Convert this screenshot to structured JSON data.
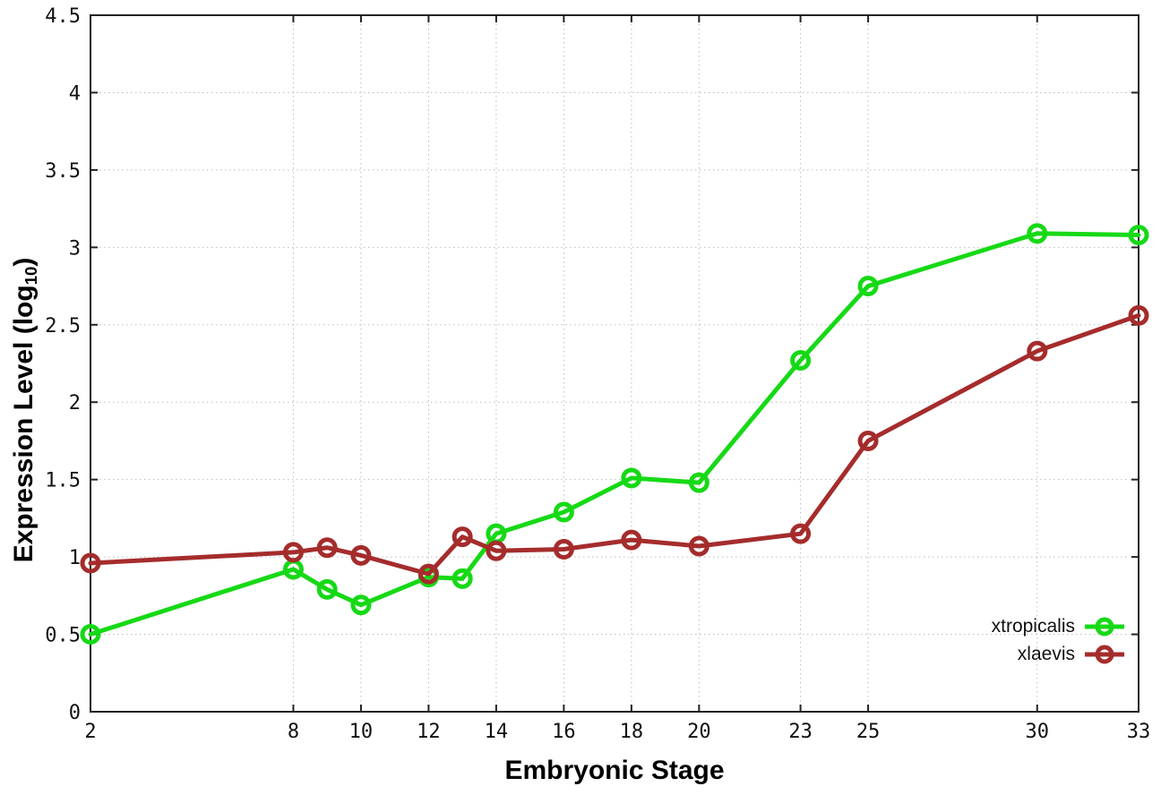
{
  "axes": {
    "x_label": "Embryonic Stage",
    "y_label_prefix": "Expression Level (log",
    "y_label_sub": "10",
    "y_label_suffix": ")"
  },
  "legend": {
    "position": "bottom-right",
    "entries": [
      {
        "label": "xtropicalis",
        "color": "#16d916"
      },
      {
        "label": "xlaevis",
        "color": "#a52c2c"
      }
    ]
  },
  "colors": {
    "grid": "#bdbdbd",
    "axis": "#222222",
    "tick_text": "#111111",
    "background": "#ffffff"
  },
  "chart_data": {
    "type": "line",
    "title": "",
    "xlabel": "Embryonic Stage",
    "ylabel": "Expression Level (log10)",
    "x": [
      2,
      8,
      9,
      10,
      12,
      13,
      14,
      16,
      18,
      20,
      23,
      25,
      30,
      33
    ],
    "series": [
      {
        "name": "xtropicalis",
        "color": "#16d916",
        "values": [
          0.5,
          0.92,
          0.79,
          0.69,
          0.87,
          0.86,
          1.15,
          1.29,
          1.51,
          1.48,
          2.27,
          2.75,
          3.09,
          3.08
        ]
      },
      {
        "name": "xlaevis",
        "color": "#a52c2c",
        "values": [
          0.96,
          1.03,
          1.06,
          1.01,
          0.89,
          1.13,
          1.04,
          1.05,
          1.11,
          1.07,
          1.15,
          1.75,
          2.33,
          2.56
        ]
      }
    ],
    "x_ticks": [
      2,
      8,
      10,
      12,
      14,
      16,
      18,
      20,
      23,
      25,
      30,
      33
    ],
    "y_ticks": [
      0,
      0.5,
      1,
      1.5,
      2,
      2.5,
      3,
      3.5,
      4,
      4.5
    ],
    "xlim": [
      2,
      33
    ],
    "ylim": [
      0,
      4.5
    ],
    "grid": true,
    "legend_position": "bottom-right",
    "marker": "open-circle"
  }
}
